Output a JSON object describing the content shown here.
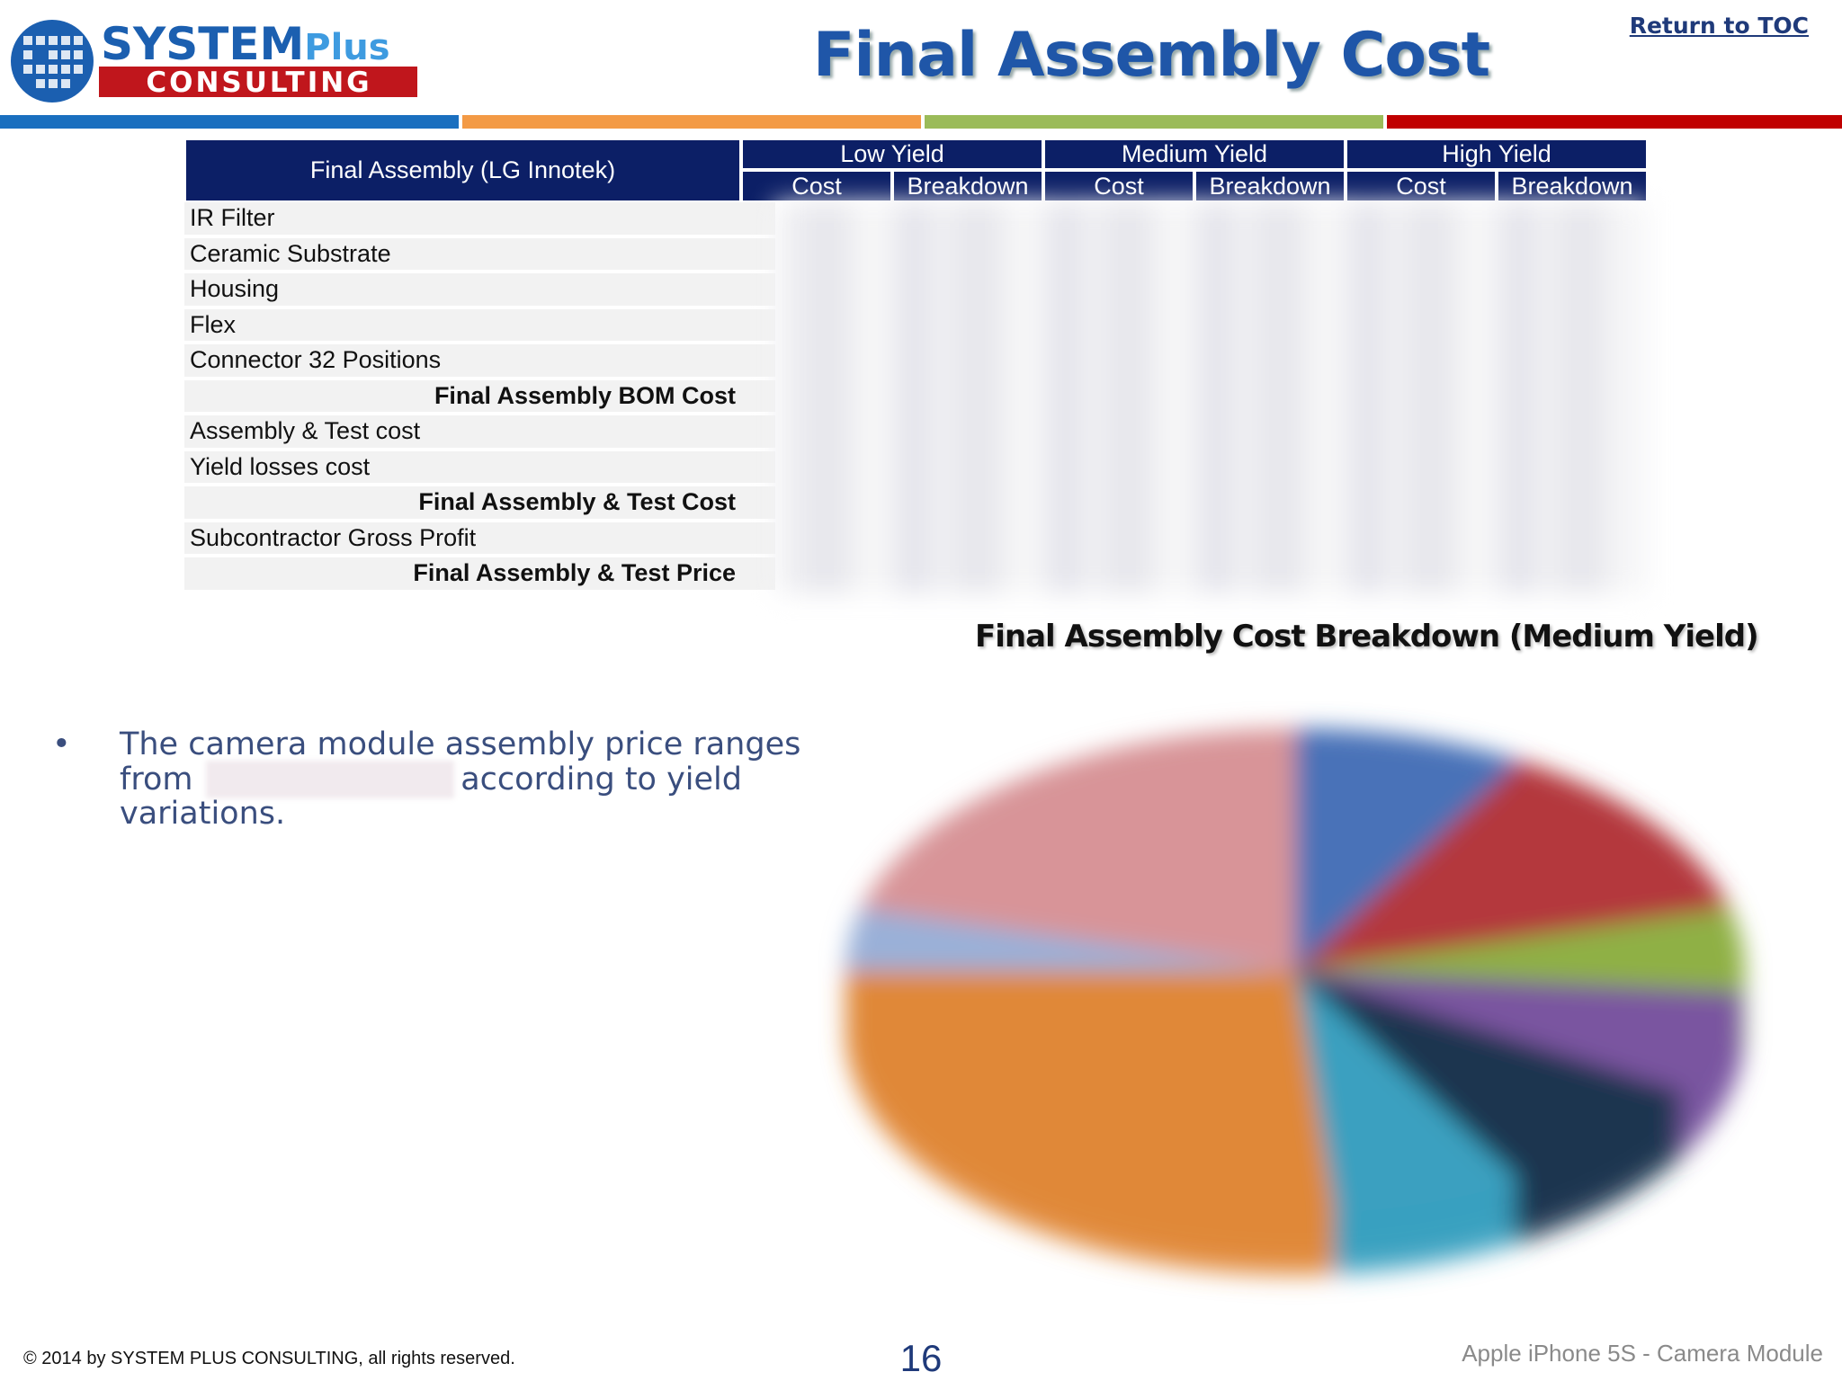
{
  "header": {
    "logo": {
      "word1": "SYSTEM",
      "word2": "Plus",
      "word3": "CONSULTING"
    },
    "title": "Final Assembly Cost",
    "link": "Return to TOC"
  },
  "table": {
    "corner": "Final Assembly (LG Innotek)",
    "groups": [
      "Low Yield",
      "Medium Yield",
      "High Yield"
    ],
    "subheaders": [
      "Cost",
      "Breakdown",
      "Cost",
      "Breakdown",
      "Cost",
      "Breakdown"
    ],
    "rows": [
      {
        "label": "IR Filter",
        "bold": false
      },
      {
        "label": "Ceramic Substrate",
        "bold": false
      },
      {
        "label": "Housing",
        "bold": false
      },
      {
        "label": "Flex",
        "bold": false
      },
      {
        "label": "Connector 32 Positions",
        "bold": false
      },
      {
        "label": "Final Assembly BOM Cost",
        "bold": true
      },
      {
        "label": "Assembly & Test cost",
        "bold": false
      },
      {
        "label": "Yield losses cost",
        "bold": false
      },
      {
        "label": "Final Assembly & Test Cost",
        "bold": true
      },
      {
        "label": "Subcontractor Gross Profit",
        "bold": false
      },
      {
        "label": "Final Assembly & Test Price",
        "bold": true
      }
    ]
  },
  "chart_title": "Final Assembly Cost Breakdown (Medium Yield)",
  "bullet": {
    "lines": [
      "The camera module assembly price ranges",
      "from",
      "according to yield",
      "variations."
    ]
  },
  "footer": {
    "copyright": "© 2014 by SYSTEM PLUS CONSULTING, all rights reserved.",
    "page": "16",
    "doc": "Apple iPhone 5S - Camera Module"
  }
}
